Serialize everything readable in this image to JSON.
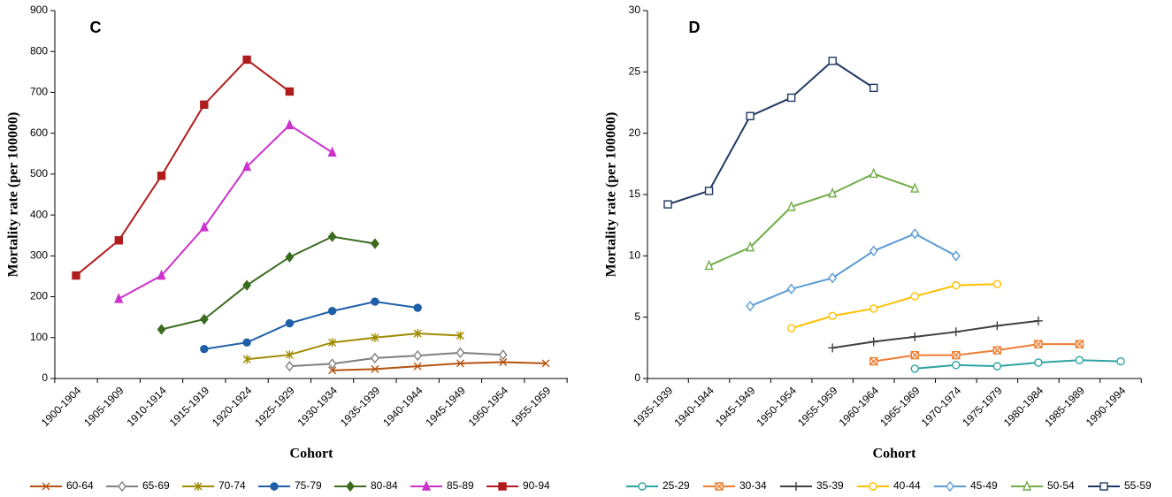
{
  "chart_data": [
    {
      "type": "line",
      "title": "C",
      "x_label": "Cohort",
      "y_label": "Mortality rate (per 100000)",
      "categories": [
        "1900-1904",
        "1905-1909",
        "1910-1914",
        "1915-1919",
        "1920-1924",
        "1925-1929",
        "1930-1934",
        "1935-1939",
        "1940-1944",
        "1945-1949",
        "1950-1954",
        "1955-1959"
      ],
      "ylim": [
        0,
        900
      ],
      "yticks": [
        0,
        100,
        200,
        300,
        400,
        500,
        600,
        700,
        800,
        900
      ],
      "grid": false,
      "legend": "bottom",
      "series": [
        {
          "name": "60-64",
          "color": "#b5520f",
          "marker": "x",
          "values": [
            null,
            null,
            null,
            null,
            null,
            null,
            20,
            23,
            30,
            37,
            40,
            37
          ]
        },
        {
          "name": "65-69",
          "color": "#7f7f7f",
          "marker": "diamond-open",
          "values": [
            null,
            null,
            null,
            null,
            null,
            30,
            36,
            50,
            56,
            63,
            58,
            null
          ]
        },
        {
          "name": "70-74",
          "color": "#a08a00",
          "marker": "star",
          "values": [
            null,
            null,
            null,
            null,
            47,
            58,
            88,
            100,
            110,
            105,
            null,
            null
          ]
        },
        {
          "name": "75-79",
          "color": "#1f5fa8",
          "marker": "circle",
          "values": [
            null,
            null,
            null,
            72,
            88,
            135,
            165,
            188,
            173,
            null,
            null,
            null
          ]
        },
        {
          "name": "80-84",
          "color": "#3a6b1f",
          "marker": "diamond",
          "values": [
            null,
            null,
            120,
            145,
            228,
            297,
            347,
            330,
            null,
            null,
            null,
            null
          ]
        },
        {
          "name": "85-89",
          "color": "#cc33cc",
          "marker": "triangle",
          "values": [
            null,
            195,
            252,
            370,
            518,
            620,
            553,
            null,
            null,
            null,
            null,
            null
          ]
        },
        {
          "name": "90-94",
          "color": "#b01c1c",
          "marker": "square",
          "values": [
            252,
            338,
            496,
            670,
            780,
            702,
            null,
            null,
            null,
            null,
            null,
            null
          ]
        }
      ]
    },
    {
      "type": "line",
      "title": "D",
      "x_label": "Cohort",
      "y_label": "Mortality rate (per 100000)",
      "categories": [
        "1935-1939",
        "1940-1944",
        "1945-1949",
        "1950-1954",
        "1955-1959",
        "1960-1964",
        "1965-1969",
        "1970-1974",
        "1975-1979",
        "1980-1984",
        "1985-1989",
        "1990-1994"
      ],
      "ylim": [
        0,
        30
      ],
      "yticks": [
        0,
        5,
        10,
        15,
        20,
        25,
        30
      ],
      "grid": false,
      "legend": "bottom",
      "series": [
        {
          "name": "25-29",
          "color": "#2ea3a3",
          "marker": "circle-open",
          "values": [
            null,
            null,
            null,
            null,
            null,
            null,
            0.8,
            1.1,
            1.0,
            1.3,
            1.5,
            1.4
          ]
        },
        {
          "name": "30-34",
          "color": "#ed7d31",
          "marker": "square-x",
          "values": [
            null,
            null,
            null,
            null,
            null,
            1.4,
            1.9,
            1.9,
            2.3,
            2.8,
            2.8,
            null
          ]
        },
        {
          "name": "35-39",
          "color": "#404040",
          "marker": "plus",
          "values": [
            null,
            null,
            null,
            null,
            2.5,
            3.0,
            3.4,
            3.8,
            4.3,
            4.7,
            null,
            null
          ]
        },
        {
          "name": "40-44",
          "color": "#ffc000",
          "marker": "circle-open",
          "values": [
            null,
            null,
            null,
            4.1,
            5.1,
            5.7,
            6.7,
            7.6,
            7.7,
            null,
            null,
            null
          ]
        },
        {
          "name": "45-49",
          "color": "#5b9bd5",
          "marker": "diamond-open",
          "values": [
            null,
            null,
            5.9,
            7.3,
            8.2,
            10.4,
            11.8,
            10.0,
            null,
            null,
            null,
            null
          ]
        },
        {
          "name": "50-54",
          "color": "#70ad47",
          "marker": "triangle-open",
          "values": [
            null,
            9.2,
            10.7,
            14.0,
            15.1,
            16.7,
            15.5,
            null,
            null,
            null,
            null,
            null
          ]
        },
        {
          "name": "55-59",
          "color": "#1f3864",
          "marker": "square-open",
          "values": [
            14.2,
            15.3,
            21.4,
            22.9,
            25.9,
            23.7,
            null,
            null,
            null,
            null,
            null,
            null
          ]
        }
      ]
    }
  ]
}
